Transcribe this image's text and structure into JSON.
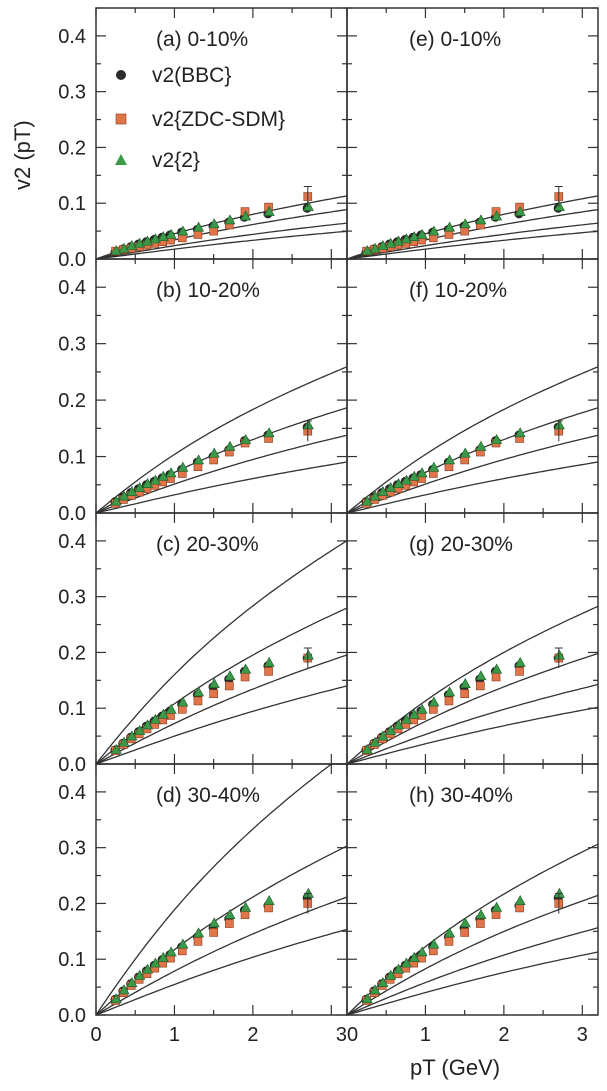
{
  "chart_data": {
    "type": "scatter",
    "layout": "4 rows x 2 columns of panels with shared axes",
    "ylabel": "v2 (pT)",
    "xlabel": "pT (GeV)",
    "xlim": [
      0,
      3.2
    ],
    "ylim": [
      0,
      0.45
    ],
    "y_ticks": [
      "0.0",
      "0.1",
      "0.2",
      "0.3",
      "0.4"
    ],
    "x_ticks_left": [
      "0",
      "1",
      "2",
      "3"
    ],
    "x_ticks_right": [
      "0",
      "1",
      "2",
      "3"
    ],
    "x_ticks_right_labeled": [
      "1",
      "2",
      "3"
    ],
    "x_tick_value_joined_label": "30",
    "legend": [
      {
        "marker": "circle",
        "label": "v2(BBC}",
        "color": "#2b2b2b"
      },
      {
        "marker": "square",
        "label": "v2{ZDC-SDM}",
        "color": "#e0754a"
      },
      {
        "marker": "triangle",
        "label": "v2{2}",
        "color": "#3a9a4a"
      }
    ],
    "panels": [
      {
        "id": "a",
        "title": "(a) 0-10%",
        "x": [
          0.25,
          0.35,
          0.45,
          0.55,
          0.65,
          0.75,
          0.85,
          0.95,
          1.1,
          1.3,
          1.5,
          1.7,
          1.9,
          2.2,
          2.7
        ],
        "series": [
          {
            "name": "v2(BBC}",
            "values": [
              0.012,
              0.018,
              0.022,
              0.027,
              0.031,
              0.035,
              0.039,
              0.043,
              0.048,
              0.053,
              0.059,
              0.066,
              0.075,
              0.081,
              0.091
            ]
          },
          {
            "name": "v2{ZDC-SDM}",
            "values": [
              0.014,
              0.017,
              0.019,
              0.022,
              0.025,
              0.028,
              0.031,
              0.034,
              0.038,
              0.044,
              0.05,
              0.061,
              0.085,
              0.093,
              0.112
            ]
          },
          {
            "name": "v2{2}",
            "values": [
              0.015,
              0.019,
              0.024,
              0.028,
              0.032,
              0.036,
              0.04,
              0.044,
              0.05,
              0.057,
              0.063,
              0.07,
              0.077,
              0.085,
              0.094
            ]
          }
        ],
        "curves": [
          0.048,
          0.038,
          0.028,
          0.022
        ]
      },
      {
        "id": "b",
        "title": "(b) 10-20%",
        "x": [
          0.25,
          0.35,
          0.45,
          0.55,
          0.65,
          0.75,
          0.85,
          0.95,
          1.1,
          1.3,
          1.5,
          1.7,
          1.9,
          2.2,
          2.7
        ],
        "series": [
          {
            "name": "v2(BBC}",
            "values": [
              0.02,
              0.028,
              0.036,
              0.043,
              0.05,
              0.056,
              0.062,
              0.068,
              0.077,
              0.09,
              0.1,
              0.112,
              0.128,
              0.138,
              0.152
            ]
          },
          {
            "name": "v2{ZDC-SDM}",
            "values": [
              0.017,
              0.024,
              0.031,
              0.037,
              0.043,
              0.049,
              0.055,
              0.061,
              0.07,
              0.082,
              0.094,
              0.108,
              0.124,
              0.132,
              0.145
            ]
          },
          {
            "name": "v2{2}",
            "values": [
              0.021,
              0.03,
              0.038,
              0.045,
              0.052,
              0.058,
              0.065,
              0.071,
              0.081,
              0.094,
              0.106,
              0.118,
              0.13,
              0.142,
              0.156
            ]
          }
        ],
        "curves": [
          0.11,
          0.08,
          0.06,
          0.04
        ]
      },
      {
        "id": "c",
        "title": "(c) 20-30%",
        "x": [
          0.25,
          0.35,
          0.45,
          0.55,
          0.65,
          0.75,
          0.85,
          0.95,
          1.1,
          1.3,
          1.5,
          1.7,
          1.9,
          2.2,
          2.7
        ],
        "series": [
          {
            "name": "v2(BBC}",
            "values": [
              0.025,
              0.037,
              0.048,
              0.058,
              0.068,
              0.077,
              0.086,
              0.095,
              0.107,
              0.124,
              0.138,
              0.152,
              0.166,
              0.176,
              0.19
            ]
          },
          {
            "name": "v2{ZDC-SDM}",
            "values": [
              0.024,
              0.035,
              0.045,
              0.054,
              0.063,
              0.071,
              0.079,
              0.087,
              0.098,
              0.113,
              0.126,
              0.14,
              0.156,
              0.166,
              0.19
            ]
          },
          {
            "name": "v2{2}",
            "values": [
              0.026,
              0.039,
              0.05,
              0.06,
              0.07,
              0.08,
              0.089,
              0.098,
              0.111,
              0.129,
              0.144,
              0.158,
              0.17,
              0.182,
              0.195
            ]
          }
        ],
        "curves": [
          0.17,
          0.12,
          0.085,
          0.062
        ]
      },
      {
        "id": "d",
        "title": "(d) 30-40%",
        "x": [
          0.25,
          0.35,
          0.45,
          0.55,
          0.65,
          0.75,
          0.85,
          0.95,
          1.1,
          1.3,
          1.5,
          1.7,
          1.9,
          2.2,
          2.7
        ],
        "series": [
          {
            "name": "v2(BBC}",
            "values": [
              0.028,
              0.043,
              0.056,
              0.068,
              0.079,
              0.089,
              0.099,
              0.108,
              0.122,
              0.14,
              0.156,
              0.172,
              0.188,
              0.196,
              0.21
            ]
          },
          {
            "name": "v2{ZDC-SDM}",
            "values": [
              0.026,
              0.04,
              0.053,
              0.064,
              0.074,
              0.084,
              0.093,
              0.102,
              0.115,
              0.132,
              0.148,
              0.164,
              0.18,
              0.192,
              0.2
            ]
          },
          {
            "name": "v2{2}",
            "values": [
              0.029,
              0.045,
              0.058,
              0.071,
              0.082,
              0.093,
              0.103,
              0.113,
              0.127,
              0.147,
              0.165,
              0.18,
              0.193,
              0.205,
              0.218
            ]
          }
        ],
        "curves": [
          0.2,
          0.13,
          0.092,
          0.068
        ]
      },
      {
        "id": "e",
        "title": "(e) 0-10%",
        "x": [
          0.25,
          0.35,
          0.45,
          0.55,
          0.65,
          0.75,
          0.85,
          0.95,
          1.1,
          1.3,
          1.5,
          1.7,
          1.9,
          2.2,
          2.7
        ],
        "series": [
          {
            "name": "v2(BBC}",
            "values": [
              0.012,
              0.018,
              0.022,
              0.027,
              0.031,
              0.035,
              0.039,
              0.043,
              0.048,
              0.053,
              0.059,
              0.066,
              0.075,
              0.081,
              0.091
            ]
          },
          {
            "name": "v2{ZDC-SDM}",
            "values": [
              0.014,
              0.017,
              0.019,
              0.022,
              0.025,
              0.028,
              0.031,
              0.034,
              0.038,
              0.044,
              0.05,
              0.061,
              0.085,
              0.093,
              0.112
            ]
          },
          {
            "name": "v2{2}",
            "values": [
              0.015,
              0.019,
              0.024,
              0.028,
              0.032,
              0.036,
              0.04,
              0.044,
              0.05,
              0.057,
              0.063,
              0.07,
              0.077,
              0.085,
              0.094
            ]
          }
        ],
        "curves": [
          0.048,
          0.038,
          0.028,
          0.022
        ]
      },
      {
        "id": "f",
        "title": "(f) 10-20%",
        "x": [
          0.25,
          0.35,
          0.45,
          0.55,
          0.65,
          0.75,
          0.85,
          0.95,
          1.1,
          1.3,
          1.5,
          1.7,
          1.9,
          2.2,
          2.7
        ],
        "series": [
          {
            "name": "v2(BBC}",
            "values": [
              0.02,
              0.028,
              0.036,
              0.043,
              0.05,
              0.056,
              0.062,
              0.068,
              0.077,
              0.09,
              0.1,
              0.112,
              0.128,
              0.138,
              0.152
            ]
          },
          {
            "name": "v2{ZDC-SDM}",
            "values": [
              0.017,
              0.024,
              0.031,
              0.037,
              0.043,
              0.049,
              0.055,
              0.061,
              0.07,
              0.082,
              0.094,
              0.108,
              0.124,
              0.132,
              0.145
            ]
          },
          {
            "name": "v2{2}",
            "values": [
              0.021,
              0.03,
              0.038,
              0.045,
              0.052,
              0.058,
              0.065,
              0.071,
              0.081,
              0.094,
              0.106,
              0.118,
              0.13,
              0.142,
              0.156
            ]
          }
        ],
        "curves": [
          0.11,
          0.08,
          0.06,
          0.04
        ]
      },
      {
        "id": "g",
        "title": "(g) 20-30%",
        "x": [
          0.25,
          0.35,
          0.45,
          0.55,
          0.65,
          0.75,
          0.85,
          0.95,
          1.1,
          1.3,
          1.5,
          1.7,
          1.9,
          2.2,
          2.7
        ],
        "series": [
          {
            "name": "v2(BBC}",
            "values": [
              0.025,
              0.037,
              0.048,
              0.058,
              0.068,
              0.077,
              0.086,
              0.095,
              0.107,
              0.124,
              0.138,
              0.152,
              0.166,
              0.176,
              0.19
            ]
          },
          {
            "name": "v2{ZDC-SDM}",
            "values": [
              0.024,
              0.035,
              0.045,
              0.054,
              0.063,
              0.071,
              0.079,
              0.087,
              0.098,
              0.113,
              0.126,
              0.14,
              0.156,
              0.166,
              0.19
            ]
          },
          {
            "name": "v2{2}",
            "values": [
              0.026,
              0.039,
              0.05,
              0.06,
              0.07,
              0.08,
              0.089,
              0.098,
              0.111,
              0.129,
              0.144,
              0.158,
              0.17,
              0.182,
              0.195
            ]
          }
        ],
        "curves": [
          0.12,
          0.085,
          0.062,
          0.045
        ]
      },
      {
        "id": "h",
        "title": "(h) 30-40%",
        "x": [
          0.25,
          0.35,
          0.45,
          0.55,
          0.65,
          0.75,
          0.85,
          0.95,
          1.1,
          1.3,
          1.5,
          1.7,
          1.9,
          2.2,
          2.7
        ],
        "series": [
          {
            "name": "v2(BBC}",
            "values": [
              0.028,
              0.043,
              0.056,
              0.068,
              0.079,
              0.089,
              0.099,
              0.108,
              0.122,
              0.14,
              0.156,
              0.172,
              0.188,
              0.196,
              0.21
            ]
          },
          {
            "name": "v2{ZDC-SDM}",
            "values": [
              0.026,
              0.04,
              0.053,
              0.064,
              0.074,
              0.084,
              0.093,
              0.102,
              0.115,
              0.132,
              0.148,
              0.164,
              0.18,
              0.192,
              0.2
            ]
          },
          {
            "name": "v2{2}",
            "values": [
              0.029,
              0.045,
              0.058,
              0.071,
              0.082,
              0.093,
              0.103,
              0.113,
              0.127,
              0.147,
              0.165,
              0.18,
              0.193,
              0.205,
              0.218
            ]
          }
        ],
        "curves": [
          0.13,
          0.092,
          0.068,
          0.05
        ]
      }
    ]
  }
}
